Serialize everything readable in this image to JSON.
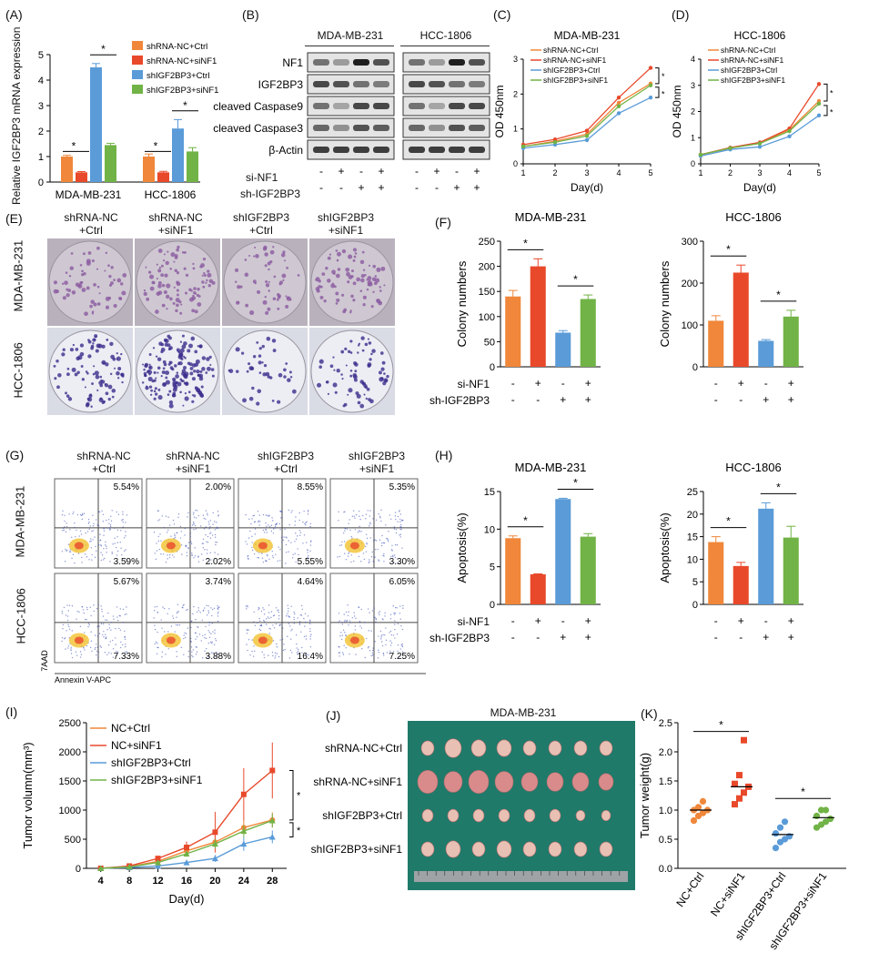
{
  "colors": {
    "orange": "#F0873A",
    "red": "#E8492B",
    "blue": "#5A9BD8",
    "green": "#71B346"
  },
  "panels": {
    "A": "(A)",
    "B": "(B)",
    "C": "(C)",
    "D": "(D)",
    "E": "(E)",
    "F": "(F)",
    "G": "(G)",
    "H": "(H)",
    "I": "(I)",
    "J": "(J)",
    "K": "(K)"
  },
  "sig": "*",
  "groups": {
    "g1": "shRNA-NC",
    "g1b": "+Ctrl",
    "g2": "shRNA-NC",
    "g2b": "+siNF1",
    "g3": "shIGF2BP3",
    "g3b": "+Ctrl",
    "g4": "shIGF2BP3",
    "g4b": "+siNF1"
  },
  "cells": {
    "mda": "MDA-MB-231",
    "hcc": "HCC-1806"
  },
  "panelA": {
    "ylabel": "Relative IGF2BP3 mRNA expression",
    "legend": [
      "shRNA-NC+Ctrl",
      "shRNA-NC+siNF1",
      "shIGF2BP3+Ctrl",
      "shIGF2BP3+siNF1"
    ],
    "yticks": [
      "0",
      "1",
      "2",
      "3",
      "4",
      "5"
    ],
    "categories": [
      "MDA-MB-231",
      "HCC-1806"
    ]
  },
  "panelB": {
    "col_mda": "MDA-MB-231",
    "col_hcc": "HCC-1806",
    "rows": [
      "NF1",
      "IGF2BP3",
      "cleaved Caspase9",
      "cleaved Caspase3",
      "β-Actin"
    ],
    "si_label": "si-NF1",
    "sh_label": "sh-IGF2BP3",
    "si_signs": [
      "-",
      "+",
      "-",
      "+",
      "-",
      "+",
      "-",
      "+"
    ],
    "sh_signs": [
      "-",
      "-",
      "+",
      "+",
      "-",
      "-",
      "+",
      "+"
    ]
  },
  "panelC": {
    "title": "MDA-MB-231",
    "ylabel": "OD 450nm",
    "xlabel": "Day(d)",
    "legend": [
      "shRNA-NC+Ctrl",
      "shRNA-NC+siNF1",
      "shIGF2BP3+Ctrl",
      "shIGF2BP3+siNF1"
    ]
  },
  "panelD": {
    "title": "HCC-1806",
    "ylabel": "OD 450nm",
    "xlabel": "Day(d)",
    "legend": [
      "shRNA-NC+Ctrl",
      "shRNA-NC+siNF1",
      "shIGF2BP3+Ctrl",
      "shIGF2BP3+siNF1"
    ]
  },
  "panelE": {
    "rowlabels": [
      "MDA-MB-231",
      "HCC-1806"
    ]
  },
  "panelF": {
    "ylabel": "Colony numbers",
    "si_label": "si-NF1",
    "sh_label": "sh-IGF2BP3",
    "si_signs": [
      "-",
      "+",
      "-",
      "+"
    ],
    "sh_signs": [
      "-",
      "-",
      "+",
      "+"
    ]
  },
  "panelG": {
    "rowlabels": [
      "MDA-MB-231",
      "HCC-1806"
    ],
    "ur": [
      "5.54%",
      "2.00%",
      "8.55%",
      "5.35%",
      "5.67%",
      "3.74%",
      "4.64%",
      "6.05%"
    ],
    "lr": [
      "3.59%",
      "2.02%",
      "5.55%",
      "3.30%",
      "7.33%",
      "3.88%",
      "16.4%",
      "7.25%"
    ],
    "yaxis": "7AAD",
    "xaxis": "Annexin V-APC"
  },
  "panelH": {
    "ylabel": "Apoptosis(%)",
    "si_label": "si-NF1",
    "sh_label": "sh-IGF2BP3",
    "si_signs": [
      "-",
      "+",
      "-",
      "+"
    ],
    "sh_signs": [
      "-",
      "-",
      "+",
      "+"
    ]
  },
  "panelI": {
    "ylabel": "Tumor volumn(mm³)",
    "xlabel": "Day(d)",
    "legend": [
      "NC+Ctrl",
      "NC+siNF1",
      "shIGF2BP3+Ctrl",
      "shIGF2BP3+siNF1"
    ]
  },
  "panelJ": {
    "title": "MDA-MB-231",
    "rows": [
      "shRNA-NC+Ctrl",
      "shRNA-NC+siNF1",
      "shIGF2BP3+Ctrl",
      "shIGF2BP3+siNF1"
    ]
  },
  "panelK": {
    "ylabel": "Tumor weight(g)",
    "categories": [
      "NC+Ctrl",
      "NC+siNF1",
      "shIGF2BP3+Ctrl",
      "shIGF2BP3+siNF1"
    ]
  },
  "chart_data": [
    {
      "id": "A",
      "type": "bar",
      "ylim": [
        0,
        5
      ],
      "categories": [
        "MDA-MB-231",
        "HCC-1806"
      ],
      "series": [
        {
          "name": "shRNA-NC+Ctrl",
          "values": [
            1.0,
            1.0
          ],
          "err": [
            0.05,
            0.1
          ]
        },
        {
          "name": "shRNA-NC+siNF1",
          "values": [
            0.38,
            0.38
          ],
          "err": [
            0.03,
            0.04
          ]
        },
        {
          "name": "shIGF2BP3+Ctrl",
          "values": [
            4.5,
            2.1
          ],
          "err": [
            0.15,
            0.35
          ]
        },
        {
          "name": "shIGF2BP3+siNF1",
          "values": [
            1.45,
            1.2
          ],
          "err": [
            0.07,
            0.15
          ]
        }
      ]
    },
    {
      "id": "C",
      "type": "line",
      "xlim": [
        1,
        5
      ],
      "ylim": [
        0,
        3
      ],
      "x": [
        1,
        2,
        3,
        4,
        5
      ],
      "xticks": [
        "1",
        "2",
        "3",
        "4",
        "5"
      ],
      "yticks": [
        "0",
        "1",
        "2",
        "3"
      ],
      "series": [
        {
          "name": "shRNA-NC+Ctrl",
          "values": [
            0.5,
            0.65,
            0.85,
            1.75,
            2.3
          ]
        },
        {
          "name": "shRNA-NC+siNF1",
          "values": [
            0.55,
            0.7,
            0.95,
            1.9,
            2.75
          ]
        },
        {
          "name": "shIGF2BP3+Ctrl",
          "values": [
            0.45,
            0.55,
            0.68,
            1.45,
            1.9
          ]
        },
        {
          "name": "shIGF2BP3+siNF1",
          "values": [
            0.5,
            0.62,
            0.8,
            1.65,
            2.25
          ]
        }
      ]
    },
    {
      "id": "D",
      "type": "line",
      "xlim": [
        1,
        5
      ],
      "ylim": [
        0,
        4
      ],
      "x": [
        1,
        2,
        3,
        4,
        5
      ],
      "xticks": [
        "1",
        "2",
        "3",
        "4",
        "5"
      ],
      "yticks": [
        "0",
        "1",
        "2",
        "3",
        "4"
      ],
      "series": [
        {
          "name": "shRNA-NC+Ctrl",
          "values": [
            0.35,
            0.6,
            0.8,
            1.3,
            2.4
          ]
        },
        {
          "name": "shRNA-NC+siNF1",
          "values": [
            0.35,
            0.62,
            0.82,
            1.35,
            3.05
          ]
        },
        {
          "name": "shIGF2BP3+Ctrl",
          "values": [
            0.3,
            0.55,
            0.65,
            1.05,
            1.85
          ]
        },
        {
          "name": "shIGF2BP3+siNF1",
          "values": [
            0.35,
            0.6,
            0.78,
            1.25,
            2.3
          ]
        }
      ]
    },
    {
      "id": "F1",
      "type": "bar",
      "title": "MDA-MB-231",
      "ylim": [
        0,
        250
      ],
      "yticks": [
        "0",
        "50",
        "100",
        "150",
        "200",
        "250"
      ],
      "values": [
        140,
        200,
        68,
        135
      ],
      "err": [
        12,
        15,
        4,
        8
      ],
      "sig": [
        [
          0,
          1
        ],
        [
          2,
          3
        ]
      ]
    },
    {
      "id": "F2",
      "type": "bar",
      "title": "HCC-1806",
      "ylim": [
        0,
        300
      ],
      "yticks": [
        "0",
        "100",
        "200",
        "300"
      ],
      "values": [
        110,
        225,
        62,
        120
      ],
      "err": [
        12,
        18,
        3,
        15
      ],
      "sig": [
        [
          0,
          1
        ],
        [
          2,
          3
        ]
      ]
    },
    {
      "id": "H1",
      "type": "bar",
      "title": "MDA-MB-231",
      "ylim": [
        0,
        15
      ],
      "yticks": [
        "0",
        "5",
        "10",
        "15"
      ],
      "values": [
        8.8,
        4.0,
        14.0,
        9.0
      ],
      "err": [
        0.3,
        0.05,
        0.1,
        0.4
      ],
      "sig": [
        [
          0,
          1
        ],
        [
          2,
          3
        ]
      ]
    },
    {
      "id": "H2",
      "type": "bar",
      "title": "HCC-1806",
      "ylim": [
        0,
        25
      ],
      "yticks": [
        "0",
        "5",
        "10",
        "15",
        "20",
        "25"
      ],
      "values": [
        13.8,
        8.5,
        21.2,
        14.8
      ],
      "err": [
        1.2,
        0.8,
        1.3,
        2.5
      ],
      "sig": [
        [
          0,
          1
        ],
        [
          2,
          3
        ]
      ]
    },
    {
      "id": "I",
      "type": "line",
      "xlim": [
        2,
        30
      ],
      "ylim": [
        0,
        2500
      ],
      "x": [
        4,
        8,
        12,
        16,
        20,
        24,
        28
      ],
      "xticks": [
        "4",
        "8",
        "12",
        "16",
        "20",
        "24",
        "28"
      ],
      "yticks": [
        "0",
        "500",
        "1000",
        "1500",
        "2000",
        "2500"
      ],
      "series": [
        {
          "name": "NC+Ctrl",
          "values": [
            0,
            30,
            120,
            300,
            450,
            700,
            830
          ],
          "err": [
            0,
            10,
            30,
            60,
            100,
            120,
            130
          ]
        },
        {
          "name": "NC+siNF1",
          "values": [
            0,
            40,
            170,
            360,
            620,
            1270,
            1680
          ],
          "err": [
            0,
            10,
            40,
            100,
            350,
            450,
            480
          ]
        },
        {
          "name": "shIGF2BP3+Ctrl",
          "values": [
            0,
            15,
            40,
            100,
            170,
            420,
            540
          ],
          "err": [
            0,
            5,
            15,
            40,
            60,
            120,
            110
          ]
        },
        {
          "name": "shIGF2BP3+siNF1",
          "values": [
            0,
            25,
            100,
            250,
            420,
            640,
            820
          ],
          "err": [
            0,
            8,
            25,
            50,
            80,
            100,
            120
          ]
        }
      ]
    },
    {
      "id": "K",
      "type": "scatter",
      "ylim": [
        0,
        2.5
      ],
      "yticks": [
        "0.0",
        "0.5",
        "1.0",
        "1.5",
        "2.0",
        "2.5"
      ],
      "categories": [
        "NC+Ctrl",
        "NC+siNF1",
        "shIGF2BP3+Ctrl",
        "shIGF2BP3+siNF1"
      ],
      "points": [
        [
          0.82,
          0.9,
          0.95,
          1.0,
          1.0,
          1.05,
          1.15
        ],
        [
          1.1,
          1.2,
          1.3,
          1.4,
          1.45,
          1.6,
          2.2
        ],
        [
          0.35,
          0.45,
          0.5,
          0.55,
          0.6,
          0.7,
          0.8
        ],
        [
          0.7,
          0.75,
          0.8,
          0.85,
          0.9,
          1.0,
          1.0
        ]
      ],
      "means": [
        1.0,
        1.4,
        0.58,
        0.87
      ]
    }
  ]
}
